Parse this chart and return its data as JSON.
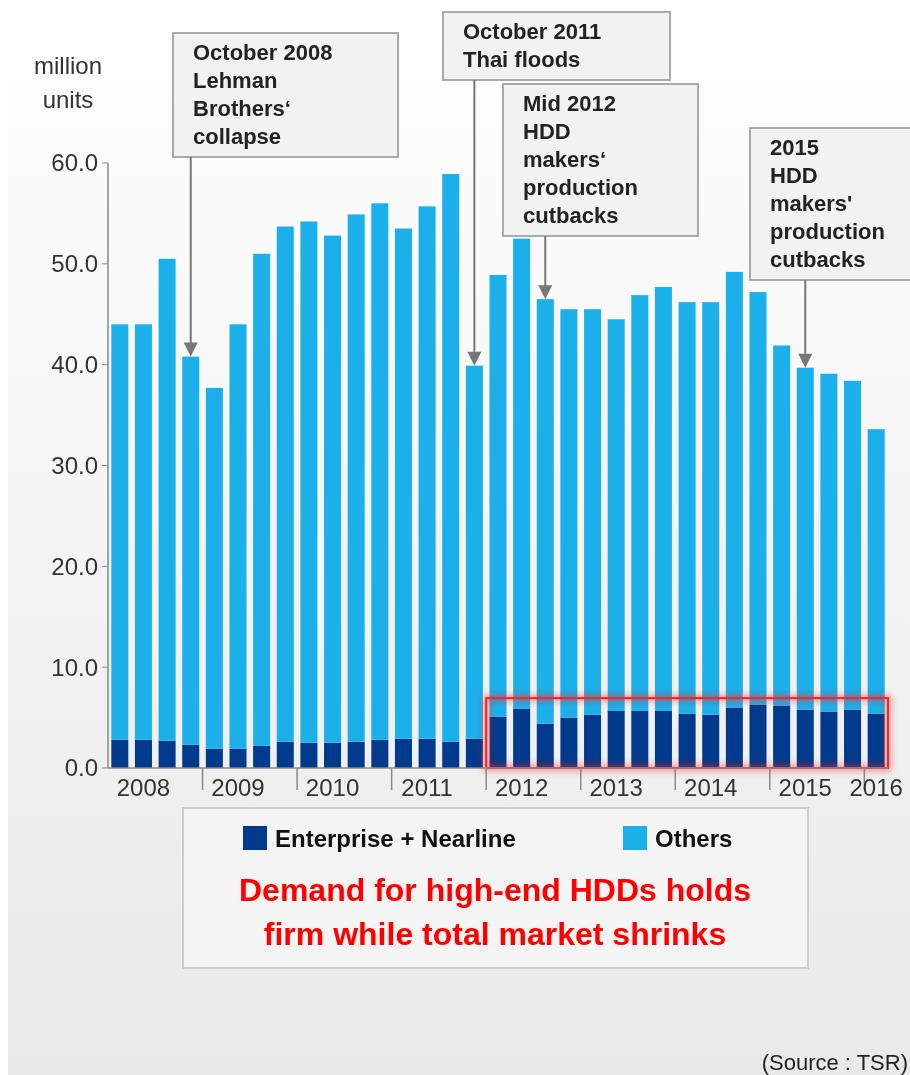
{
  "chart_data": {
    "type": "bar",
    "stacked": true,
    "categories": [
      null,
      "2008",
      null,
      null,
      null,
      "2009",
      null,
      null,
      null,
      "2010",
      null,
      null,
      null,
      "2011",
      null,
      null,
      null,
      "2012",
      null,
      null,
      null,
      "2013",
      null,
      null,
      null,
      "2014",
      null,
      null,
      null,
      "2015",
      null,
      null,
      "2016"
    ],
    "series": [
      {
        "name": "Enterprise + Nearline",
        "color": "#003a8c",
        "values": [
          2.8,
          2.8,
          2.7,
          2.3,
          1.9,
          1.9,
          2.2,
          2.6,
          2.5,
          2.5,
          2.6,
          2.8,
          2.9,
          2.9,
          2.6,
          2.9,
          5.1,
          5.9,
          4.4,
          5.0,
          5.3,
          5.7,
          5.7,
          5.7,
          5.4,
          5.3,
          6.0,
          6.3,
          6.2,
          5.8,
          5.6,
          5.8,
          5.4
        ]
      },
      {
        "name": "Others",
        "color": "#1cb0ea",
        "values": [
          41.2,
          41.2,
          47.8,
          38.5,
          35.8,
          42.1,
          48.8,
          51.1,
          51.7,
          50.3,
          52.3,
          53.2,
          50.6,
          52.8,
          56.3,
          37.0,
          43.8,
          46.6,
          42.1,
          40.5,
          40.2,
          38.8,
          41.2,
          42.0,
          40.8,
          40.9,
          43.2,
          40.9,
          35.7,
          33.9,
          33.5,
          32.6,
          28.2
        ]
      }
    ],
    "ylim": [
      0,
      60
    ],
    "yticks": [
      {
        "value": 0,
        "label": "0.0"
      },
      {
        "value": 10,
        "label": "10.0"
      },
      {
        "value": 20,
        "label": "20.0"
      },
      {
        "value": 30,
        "label": "30.0"
      },
      {
        "value": 40,
        "label": "40.0"
      },
      {
        "value": 50,
        "label": "50.0"
      },
      {
        "value": 60,
        "label": "60.0"
      }
    ],
    "ylabel": "million units",
    "legend": "bottom",
    "annotations": [
      "October 2008\nLehman\nBrothers‘\ncollapse",
      "October 2011\nThai floods",
      "Mid 2012\nHDD\nmakers‘\nproduction\ncutbacks",
      "2015\nHDD\nmakers'\nproduction\ncutbacks",
      "Demand for high-end HDDs holds\nfirm while total market shrinks",
      "(Source : TSR)"
    ]
  }
}
